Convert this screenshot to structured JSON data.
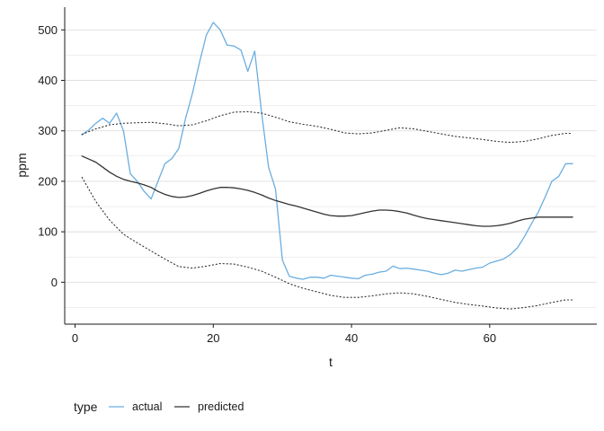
{
  "chart_data": {
    "type": "line",
    "xlabel": "t",
    "ylabel": "ppm",
    "xlim": [
      -1.5,
      75.5
    ],
    "ylim": [
      -83,
      545
    ],
    "x_ticks": [
      0,
      20,
      40,
      60
    ],
    "y_ticks": [
      0,
      100,
      200,
      300,
      400,
      500
    ],
    "grid": "horizontal",
    "legend": {
      "title": "type",
      "position": "bottom-left",
      "entries": [
        "actual",
        "predicted"
      ]
    },
    "colors": {
      "actual": "#6aaee0",
      "predicted": "#333333",
      "grid": "#dedede",
      "axis": "#1a1a1a"
    },
    "series": [
      {
        "name": "actual",
        "style": "solid",
        "x": [
          1,
          2,
          3,
          4,
          5,
          6,
          7,
          8,
          9,
          10,
          11,
          12,
          13,
          14,
          15,
          16,
          17,
          18,
          19,
          20,
          21,
          22,
          23,
          24,
          25,
          26,
          27,
          28,
          29,
          30,
          31,
          32,
          33,
          34,
          35,
          36,
          37,
          38,
          39,
          40,
          41,
          42,
          43,
          44,
          45,
          46,
          47,
          48,
          49,
          50,
          51,
          52,
          53,
          54,
          55,
          56,
          57,
          58,
          59,
          60,
          61,
          62,
          63,
          64,
          65,
          66,
          67,
          68,
          69,
          70,
          71,
          72
        ],
        "values": [
          292,
          302,
          315,
          325,
          315,
          335,
          300,
          215,
          200,
          180,
          165,
          200,
          235,
          245,
          265,
          325,
          375,
          435,
          490,
          515,
          500,
          470,
          468,
          460,
          418,
          458,
          335,
          228,
          185,
          44,
          12,
          8,
          6,
          10,
          10,
          8,
          14,
          12,
          10,
          8,
          7,
          14,
          16,
          20,
          22,
          32,
          27,
          28,
          26,
          24,
          22,
          18,
          15,
          18,
          24,
          22,
          25,
          28,
          30,
          38,
          42,
          46,
          55,
          68,
          90,
          115,
          138,
          168,
          200,
          210,
          235,
          235
        ]
      },
      {
        "name": "predicted",
        "style": "solid",
        "x": [
          1,
          2,
          3,
          4,
          5,
          6,
          7,
          8,
          9,
          10,
          11,
          12,
          13,
          14,
          15,
          16,
          17,
          18,
          19,
          20,
          21,
          22,
          23,
          24,
          25,
          26,
          27,
          28,
          29,
          30,
          31,
          32,
          33,
          34,
          35,
          36,
          37,
          38,
          39,
          40,
          41,
          42,
          43,
          44,
          45,
          46,
          47,
          48,
          49,
          50,
          51,
          52,
          53,
          54,
          55,
          56,
          57,
          58,
          59,
          60,
          61,
          62,
          63,
          64,
          65,
          66,
          67,
          68,
          69,
          70,
          71,
          72
        ],
        "values": [
          250,
          244,
          238,
          228,
          218,
          210,
          204,
          200,
          197,
          193,
          188,
          180,
          174,
          170,
          168,
          169,
          172,
          176,
          181,
          185,
          188,
          188,
          187,
          185,
          182,
          178,
          173,
          167,
          162,
          158,
          154,
          151,
          147,
          143,
          139,
          135,
          132,
          131,
          131,
          132,
          135,
          138,
          141,
          143,
          143,
          142,
          140,
          137,
          133,
          129,
          126,
          124,
          122,
          120,
          118,
          116,
          114,
          112,
          111,
          111,
          112,
          114,
          117,
          121,
          125,
          127,
          129,
          129,
          129,
          129,
          129,
          129
        ]
      },
      {
        "name": "",
        "style": "dotted",
        "x": [
          1,
          3,
          5,
          7,
          9,
          11,
          13,
          15,
          17,
          19,
          21,
          23,
          25,
          27,
          29,
          31,
          33,
          35,
          37,
          39,
          41,
          43,
          45,
          47,
          49,
          51,
          53,
          55,
          57,
          59,
          61,
          63,
          65,
          67,
          69,
          71,
          72
        ],
        "values": [
          293,
          304,
          312,
          315,
          316,
          317,
          314,
          310,
          312,
          320,
          330,
          337,
          338,
          335,
          327,
          318,
          313,
          309,
          303,
          296,
          294,
          296,
          301,
          306,
          304,
          299,
          294,
          289,
          286,
          283,
          279,
          277,
          279,
          284,
          291,
          295,
          295
        ]
      },
      {
        "name": "",
        "style": "dotted",
        "x": [
          1,
          3,
          5,
          7,
          9,
          11,
          13,
          15,
          17,
          19,
          21,
          23,
          25,
          27,
          29,
          31,
          33,
          35,
          37,
          39,
          41,
          43,
          45,
          47,
          49,
          51,
          53,
          55,
          57,
          59,
          61,
          63,
          65,
          67,
          69,
          71,
          72
        ],
        "values": [
          208,
          160,
          123,
          95,
          78,
          62,
          46,
          31,
          28,
          32,
          37,
          36,
          30,
          22,
          10,
          -3,
          -12,
          -19,
          -26,
          -30,
          -30,
          -27,
          -23,
          -21,
          -23,
          -28,
          -34,
          -40,
          -44,
          -47,
          -51,
          -53,
          -50,
          -46,
          -40,
          -35,
          -35
        ]
      }
    ]
  }
}
